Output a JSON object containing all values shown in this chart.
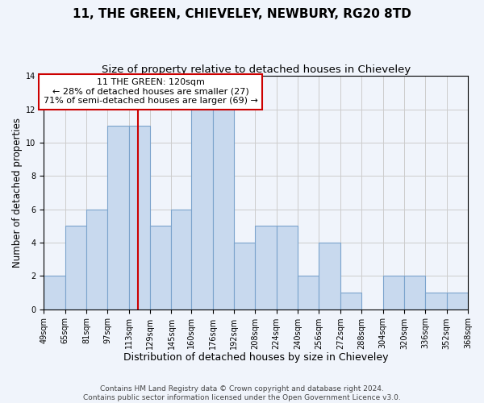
{
  "title": "11, THE GREEN, CHIEVELEY, NEWBURY, RG20 8TD",
  "subtitle": "Size of property relative to detached houses in Chieveley",
  "xlabel": "Distribution of detached houses by size in Chieveley",
  "ylabel": "Number of detached properties",
  "bin_edges": [
    49,
    65,
    81,
    97,
    113,
    129,
    145,
    160,
    176,
    192,
    208,
    224,
    240,
    256,
    272,
    288,
    304,
    320,
    336,
    352,
    368
  ],
  "bar_heights": [
    2,
    5,
    6,
    11,
    11,
    5,
    6,
    12,
    12,
    4,
    5,
    5,
    2,
    4,
    1,
    0,
    2,
    2,
    1,
    1
  ],
  "bar_color": "#c8d9ee",
  "bar_edge_color": "#7ba3cc",
  "property_value": 120,
  "red_line_color": "#cc0000",
  "annotation_line1": "11 THE GREEN: 120sqm",
  "annotation_line2": "← 28% of detached houses are smaller (27)",
  "annotation_line3": "71% of semi-detached houses are larger (69) →",
  "annotation_box_color": "#ffffff",
  "annotation_box_edge_color": "#cc0000",
  "ylim": [
    0,
    14
  ],
  "yticks": [
    0,
    2,
    4,
    6,
    8,
    10,
    12,
    14
  ],
  "grid_color": "#cccccc",
  "background_color": "#f0f4fb",
  "footer_line1": "Contains HM Land Registry data © Crown copyright and database right 2024.",
  "footer_line2": "Contains public sector information licensed under the Open Government Licence v3.0.",
  "title_fontsize": 11,
  "subtitle_fontsize": 9.5,
  "xlabel_fontsize": 9,
  "ylabel_fontsize": 8.5,
  "tick_fontsize": 7,
  "annotation_fontsize": 8,
  "footer_fontsize": 6.5
}
